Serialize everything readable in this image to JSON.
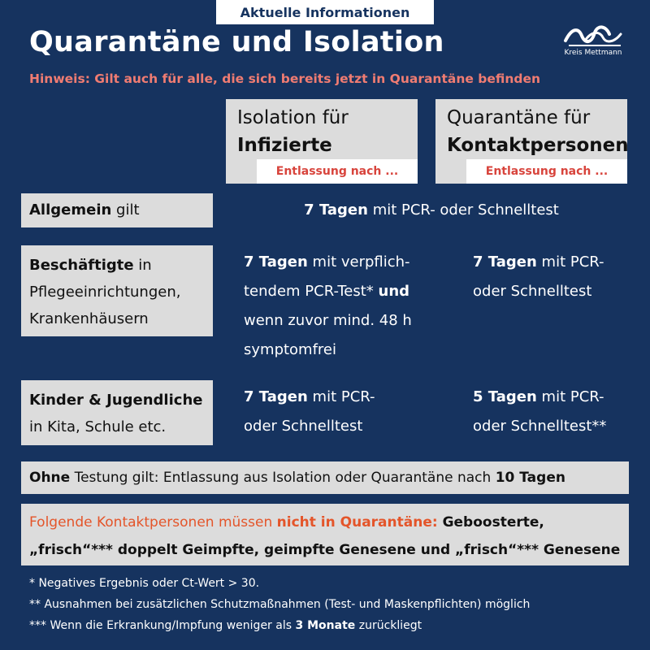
{
  "header": {
    "tab": "Aktuelle Informationen",
    "title": "Quarantäne und Isolation",
    "hint": "Hinweis: Gilt auch für alle, die sich bereits jetzt in Quarantäne befinden",
    "logo_text": "Kreis Mettmann"
  },
  "columns": {
    "isolation": {
      "line1": "Isolation für",
      "line2": "Infizierte",
      "sub": "Entlassung nach ..."
    },
    "quarantine": {
      "line1": "Quarantäne für",
      "line2": "Kontaktpersonen",
      "sub": "Entlassung nach ..."
    }
  },
  "rows": {
    "general": {
      "label_bold": "Allgemein",
      "label_rest": " gilt",
      "value_bold": "7 Tagen",
      "value_rest": " mit PCR- oder Schnelltest"
    },
    "employees": {
      "label_bold": "Beschäftigte",
      "label_rest1": " in",
      "label_line2": "Pflegeeinrichtungen,",
      "label_line3": "Krankenhäusern",
      "iso_bold": "7 Tagen",
      "iso_rest1": " mit verpflich-",
      "iso_line2a": "tendem PCR-Test* ",
      "iso_line2b": "und",
      "iso_line3": "wenn zuvor mind. 48 h",
      "iso_line4": "symptomfrei",
      "quar_bold": "7 Tagen",
      "quar_rest1": " mit PCR-",
      "quar_line2": "oder Schnelltest"
    },
    "kids": {
      "label_line1": "Kinder & Jugendliche",
      "label_line2": "in Kita, Schule etc.",
      "iso_bold": "7 Tagen",
      "iso_rest1": " mit PCR-",
      "iso_line2": "oder Schnelltest",
      "quar_bold": "5 Tagen",
      "quar_rest1": " mit PCR-",
      "quar_line2": "oder Schnelltest**"
    }
  },
  "no_test": {
    "bold1": "Ohne",
    "middle": " Testung gilt: Entlassung aus Isolation oder Quarantäne nach ",
    "bold2": "10 Tagen"
  },
  "exempt": {
    "red1": "Folgende Kontaktpersonen müssen ",
    "red_bold": "nicht in Quarantäne:",
    "bold1": " Geboosterte,",
    "line2": "„frisch“*** doppelt Geimpfte, geimpfte Genesene und „frisch“*** Genesene"
  },
  "footnotes": {
    "f1": "* Negatives Ergebnis oder Ct-Wert > 30.",
    "f2": "** Ausnahmen bei zusätzlichen Schutzmaßnahmen (Test- und Maskenpflichten) möglich",
    "f3a": "*** Wenn die Erkrankung/Impfung weniger als ",
    "f3b": "3 Monate",
    "f3c": " zurückliegt"
  },
  "colors": {
    "background": "#16335f",
    "box": "#dcdcdc",
    "accent_red": "#d8443c",
    "hint": "#f07c72",
    "orange": "#e4552a"
  }
}
